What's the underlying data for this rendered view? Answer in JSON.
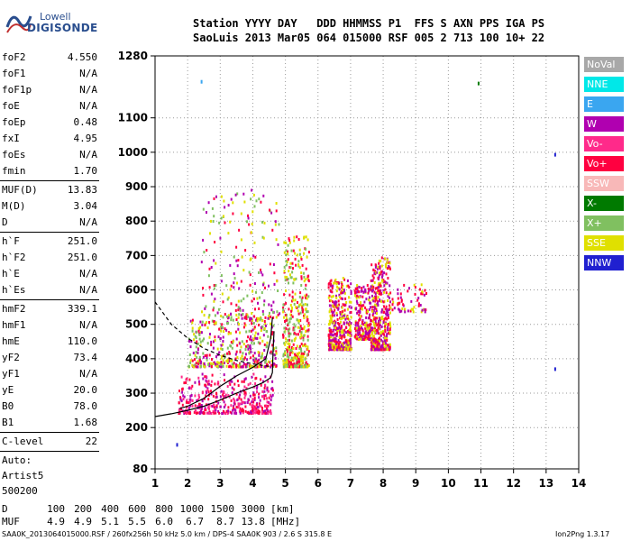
{
  "logo": {
    "line1": "Lowell",
    "line2": "DIGISONDE"
  },
  "header": {
    "labels": "Station YYYY DAY   DDD HHMMSS P1  FFS S AXN PPS IGA PS",
    "values": "SaoLuis 2013 Mar05 064 015000 RSF 005 2 713 100 10+ 22"
  },
  "params_top": [
    {
      "name": "foF2",
      "value": "4.550"
    },
    {
      "name": "foF1",
      "value": "N/A"
    },
    {
      "name": "foF1p",
      "value": "N/A"
    },
    {
      "name": "foE",
      "value": "N/A"
    },
    {
      "name": "foEp",
      "value": "0.48"
    },
    {
      "name": "fxI",
      "value": "4.95"
    },
    {
      "name": "foEs",
      "value": "N/A"
    },
    {
      "name": "fmin",
      "value": "1.70"
    }
  ],
  "params_muf": [
    {
      "name": "MUF(D)",
      "value": "13.83"
    },
    {
      "name": "M(D)",
      "value": "3.04"
    },
    {
      "name": "D",
      "value": "N/A"
    }
  ],
  "params_h": [
    {
      "name": "h`F",
      "value": "251.0"
    },
    {
      "name": "h`F2",
      "value": "251.0"
    },
    {
      "name": "h`E",
      "value": "N/A"
    },
    {
      "name": "h`Es",
      "value": "N/A"
    }
  ],
  "params_hm": [
    {
      "name": "hmF2",
      "value": "339.1"
    },
    {
      "name": "hmF1",
      "value": "N/A"
    },
    {
      "name": "hmE",
      "value": "110.0"
    },
    {
      "name": "yF2",
      "value": "73.4"
    },
    {
      "name": "yF1",
      "value": "N/A"
    },
    {
      "name": "yE",
      "value": "20.0"
    },
    {
      "name": "B0",
      "value": "78.0"
    },
    {
      "name": "B1",
      "value": "1.68"
    }
  ],
  "clevel": {
    "name": "C-level",
    "value": "22"
  },
  "scaler": [
    "Auto:",
    "Artist5",
    "500200"
  ],
  "legend": [
    {
      "label": "NoVal",
      "color": "#a8a8a8"
    },
    {
      "label": "NNE",
      "color": "#00e8e8"
    },
    {
      "label": "E",
      "color": "#3aa6f0"
    },
    {
      "label": "W",
      "color": "#b000b0"
    },
    {
      "label": "Vo-",
      "color": "#ff2a8a"
    },
    {
      "label": "Vo+",
      "color": "#ff0040"
    },
    {
      "label": "SSW",
      "color": "#f8b8b8"
    },
    {
      "label": "X-",
      "color": "#007a00"
    },
    {
      "label": "X+",
      "color": "#80c060"
    },
    {
      "label": "SSE",
      "color": "#e0e000"
    },
    {
      "label": "NNW",
      "color": "#2020d0"
    }
  ],
  "distance_row": {
    "label": "D",
    "values": [
      "100",
      "200",
      "400",
      "600",
      "800",
      "1000",
      "1500",
      "3000"
    ],
    "unit": "[km]"
  },
  "muf_row": {
    "label": "MUF",
    "values": [
      "4.9",
      "4.9",
      "5.1",
      "5.5",
      "6.0",
      "6.7",
      "8.7",
      "13.8"
    ],
    "unit": "[MHz]"
  },
  "footer": {
    "left": "SAA0K_2013064015000.RSF / 260fx256h 50 kHz 5.0 km / DPS-4 SAA0K 903 / 2.6 S 315.8 E",
    "right": "Ion2Png 1.3.17"
  },
  "chart_data": {
    "type": "scatter",
    "title": "",
    "xlabel": "",
    "ylabel": "",
    "xlim": [
      1,
      14
    ],
    "ylim": [
      80,
      1280
    ],
    "x_ticks": [
      1,
      2,
      3,
      4,
      5,
      6,
      7,
      8,
      9,
      10,
      11,
      12,
      13,
      14
    ],
    "y_ticks": [
      80,
      200,
      300,
      400,
      500,
      600,
      700,
      800,
      900,
      1000,
      1100,
      1280
    ],
    "grid": true,
    "traces": [
      {
        "name": "profile",
        "style": "solid",
        "points": [
          [
            1.0,
            232
          ],
          [
            1.5,
            240
          ],
          [
            2.0,
            250
          ],
          [
            2.5,
            262
          ],
          [
            3.0,
            280
          ],
          [
            3.5,
            300
          ],
          [
            4.0,
            318
          ],
          [
            4.3,
            330
          ],
          [
            4.55,
            345
          ],
          [
            4.6,
            360
          ],
          [
            4.62,
            420
          ],
          [
            4.65,
            480
          ]
        ]
      },
      {
        "name": "virtual-height",
        "style": "solid",
        "points": [
          [
            1.75,
            255
          ],
          [
            2.0,
            262
          ],
          [
            2.5,
            285
          ],
          [
            3.0,
            320
          ],
          [
            3.5,
            350
          ],
          [
            4.0,
            375
          ],
          [
            4.4,
            400
          ],
          [
            4.55,
            460
          ],
          [
            4.6,
            520
          ]
        ]
      },
      {
        "name": "extraordinary-fit",
        "style": "dashed",
        "points": [
          [
            1.0,
            565
          ],
          [
            1.5,
            500
          ],
          [
            2.0,
            460
          ],
          [
            2.5,
            430
          ],
          [
            3.0,
            410
          ],
          [
            3.5,
            395
          ],
          [
            4.0,
            385
          ],
          [
            4.5,
            378
          ]
        ]
      }
    ],
    "echo_clusters": [
      {
        "x_range": [
          1.7,
          4.6
        ],
        "y_range": [
          245,
          360
        ],
        "colors": [
          "Vo+",
          "Vo-",
          "W"
        ],
        "density": "high"
      },
      {
        "x_range": [
          2.0,
          4.7
        ],
        "y_range": [
          380,
          520
        ],
        "colors": [
          "SSE",
          "X+",
          "Vo+",
          "W"
        ],
        "density": "high"
      },
      {
        "x_range": [
          2.4,
          4.8
        ],
        "y_range": [
          520,
          900
        ],
        "colors": [
          "W",
          "Vo+",
          "SSE",
          "X+"
        ],
        "density": "medium"
      },
      {
        "x_range": [
          4.9,
          5.7
        ],
        "y_range": [
          380,
          760
        ],
        "colors": [
          "SSE",
          "X+",
          "Vo+"
        ],
        "density": "high"
      },
      {
        "x_range": [
          6.3,
          7.0
        ],
        "y_range": [
          430,
          640
        ],
        "colors": [
          "SSE",
          "Vo+",
          "W"
        ],
        "density": "high"
      },
      {
        "x_range": [
          7.1,
          7.6
        ],
        "y_range": [
          460,
          620
        ],
        "colors": [
          "Vo+",
          "SSE",
          "W"
        ],
        "density": "medium"
      },
      {
        "x_range": [
          7.6,
          8.2
        ],
        "y_range": [
          430,
          700
        ],
        "colors": [
          "SSE",
          "Vo+",
          "W"
        ],
        "density": "high"
      },
      {
        "x_range": [
          8.2,
          9.3
        ],
        "y_range": [
          540,
          620
        ],
        "colors": [
          "W",
          "SSE",
          "Vo+"
        ],
        "density": "low"
      }
    ],
    "isolated_points": [
      {
        "x": 10.9,
        "y": 1205,
        "color": "X-"
      },
      {
        "x": 13.25,
        "y": 998,
        "color": "NNW"
      },
      {
        "x": 13.25,
        "y": 375,
        "color": "NNW"
      },
      {
        "x": 1.65,
        "y": 155,
        "color": "NNW"
      },
      {
        "x": 2.4,
        "y": 1210,
        "color": "E"
      }
    ]
  }
}
